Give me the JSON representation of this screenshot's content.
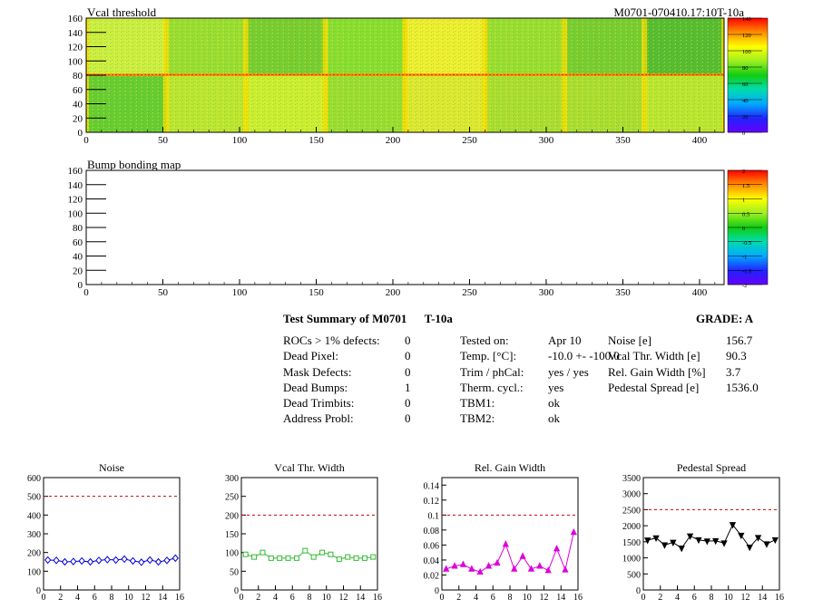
{
  "maps": {
    "vcal": {
      "title": "Vcal threshold",
      "id_label": "M0701-070410.17:10T-10a",
      "x_ticks": [
        "0",
        "50",
        "100",
        "150",
        "200",
        "250",
        "300",
        "350",
        "400"
      ],
      "y_ticks": [
        "0",
        "20",
        "40",
        "60",
        "80",
        "100",
        "120",
        "140",
        "160"
      ],
      "z_ticks": [
        "0",
        "20",
        "40",
        "60",
        "80",
        "100",
        "120",
        "140"
      ],
      "z_range": [
        0,
        140
      ]
    },
    "bump": {
      "title": "Bump bonding map",
      "x_ticks": [
        "0",
        "50",
        "100",
        "150",
        "200",
        "250",
        "300",
        "350",
        "400"
      ],
      "y_ticks": [
        "0",
        "20",
        "40",
        "60",
        "80",
        "100",
        "120",
        "140",
        "160"
      ],
      "z_ticks": [
        "-2",
        "-1.5",
        "-1",
        "-0.5",
        "0",
        "0.5",
        "1",
        "1.5",
        "2"
      ],
      "z_range": [
        -2,
        2
      ]
    }
  },
  "summary": {
    "title": "Test Summary of M0701",
    "temp_tag": "T-10a",
    "grade_label": "GRADE:  A",
    "defects": [
      {
        "label": "ROCs > 1% defects:",
        "value": "0"
      },
      {
        "label": "Dead Pixel:",
        "value": "0"
      },
      {
        "label": "Mask Defects:",
        "value": "0"
      },
      {
        "label": "Dead Bumps:",
        "value": "1"
      },
      {
        "label": "Dead Trimbits:",
        "value": "0"
      },
      {
        "label": "Address Probl:",
        "value": "0"
      }
    ],
    "conditions": [
      {
        "label": "Tested on:",
        "value": "Apr 10"
      },
      {
        "label": "Temp. [°C]:",
        "value": "-10.0 +- -100.0"
      },
      {
        "label": "Trim / phCal:",
        "value": "yes / yes"
      },
      {
        "label": "Therm. cycl.:",
        "value": "yes"
      },
      {
        "label": "TBM1:",
        "value": "ok"
      },
      {
        "label": "TBM2:",
        "value": "ok"
      }
    ],
    "results": [
      {
        "label": "Noise [e]",
        "value": "156.7"
      },
      {
        "label": "Vcal Thr. Width [e]",
        "value": "90.3"
      },
      {
        "label": "Rel. Gain Width [%]",
        "value": "3.7"
      },
      {
        "label": "Pedestal Spread [e]",
        "value": "1536.0"
      }
    ]
  },
  "chart_data": [
    {
      "type": "line",
      "title": "Noise",
      "x": [
        0.5,
        1.5,
        2.5,
        3.5,
        4.5,
        5.5,
        6.5,
        7.5,
        8.5,
        9.5,
        10.5,
        11.5,
        12.5,
        13.5,
        14.5,
        15.5
      ],
      "values": [
        160,
        158,
        150,
        152,
        155,
        150,
        158,
        162,
        160,
        165,
        155,
        148,
        160,
        150,
        158,
        170
      ],
      "xlim": [
        0,
        16
      ],
      "ylim": [
        0,
        600
      ],
      "x_ticks": [
        "0",
        "2",
        "4",
        "6",
        "8",
        "10",
        "12",
        "14",
        "16"
      ],
      "y_ticks": [
        "0",
        "100",
        "200",
        "300",
        "400",
        "500",
        "600"
      ],
      "limit": 500,
      "color": "#0000dd",
      "marker": "diamond"
    },
    {
      "type": "line",
      "title": "Vcal Thr. Width",
      "x": [
        0.5,
        1.5,
        2.5,
        3.5,
        4.5,
        5.5,
        6.5,
        7.5,
        8.5,
        9.5,
        10.5,
        11.5,
        12.5,
        13.5,
        14.5,
        15.5
      ],
      "values": [
        95,
        88,
        100,
        85,
        85,
        85,
        85,
        105,
        88,
        100,
        95,
        82,
        88,
        85,
        85,
        88
      ],
      "xlim": [
        0,
        16
      ],
      "ylim": [
        0,
        300
      ],
      "x_ticks": [
        "0",
        "2",
        "4",
        "6",
        "8",
        "10",
        "12",
        "14",
        "16"
      ],
      "y_ticks": [
        "0",
        "50",
        "100",
        "150",
        "200",
        "250",
        "300"
      ],
      "limit": 200,
      "color": "#33bb33",
      "marker": "square"
    },
    {
      "type": "line",
      "title": "Rel. Gain Width",
      "x": [
        0.5,
        1.5,
        2.5,
        3.5,
        4.5,
        5.5,
        6.5,
        7.5,
        8.5,
        9.5,
        10.5,
        11.5,
        12.5,
        13.5,
        14.5,
        15.5
      ],
      "values": [
        0.028,
        0.032,
        0.034,
        0.028,
        0.024,
        0.032,
        0.036,
        0.061,
        0.028,
        0.045,
        0.028,
        0.032,
        0.026,
        0.055,
        0.027,
        0.077
      ],
      "xlim": [
        0,
        16
      ],
      "ylim": [
        0,
        0.15
      ],
      "x_ticks": [
        "0",
        "2",
        "4",
        "6",
        "8",
        "10",
        "12",
        "14",
        "16"
      ],
      "y_ticks": [
        "0",
        "0.02",
        "0.04",
        "0.06",
        "0.08",
        "0.1",
        "0.12",
        "0.14"
      ],
      "limit": 0.1,
      "color": "#dd00dd",
      "marker": "triangle"
    },
    {
      "type": "line",
      "title": "Pedestal Spread",
      "x": [
        0.5,
        1.5,
        2.5,
        3.5,
        4.5,
        5.5,
        6.5,
        7.5,
        8.5,
        9.5,
        10.5,
        11.5,
        12.5,
        13.5,
        14.5,
        15.5
      ],
      "values": [
        1550,
        1620,
        1400,
        1480,
        1300,
        1680,
        1560,
        1520,
        1530,
        1460,
        2030,
        1700,
        1330,
        1630,
        1430,
        1560
      ],
      "xlim": [
        0,
        16
      ],
      "ylim": [
        0,
        3500
      ],
      "x_ticks": [
        "0",
        "2",
        "4",
        "6",
        "8",
        "10",
        "12",
        "14",
        "16"
      ],
      "y_ticks": [
        "0",
        "500",
        "1000",
        "1500",
        "2000",
        "2500",
        "3000",
        "3500"
      ],
      "limit": 2500,
      "color": "#000000",
      "marker": "triangle-down"
    }
  ]
}
